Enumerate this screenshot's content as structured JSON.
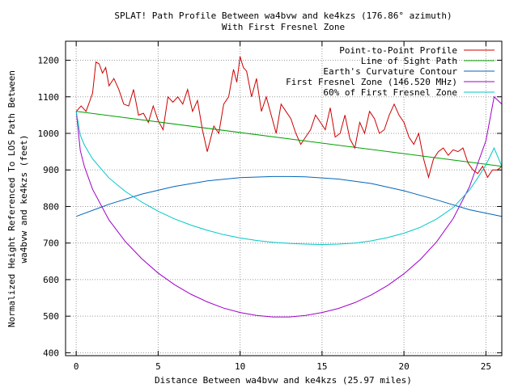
{
  "chart_data": {
    "type": "line",
    "title": "SPLAT! Path Profile Between wa4bvw and ke4kzs (176.86° azimuth)",
    "subtitle": "With First Fresnel Zone",
    "xlabel": "Distance Between wa4bvw and ke4kzs (25.97 miles)",
    "ylabel_lines": [
      "Normalized Height Referenced To LOS Path Between",
      "wa4bvw and ke4kzs (feet)"
    ],
    "xlim": [
      -0.65,
      25.97
    ],
    "ylim": [
      392,
      1252
    ],
    "x_ticks": [
      0,
      5,
      10,
      15,
      20,
      25
    ],
    "y_ticks": [
      400,
      500,
      600,
      700,
      800,
      900,
      1000,
      1100,
      1200
    ],
    "grid": true,
    "legend_position": "top-right",
    "series": [
      {
        "name": "Point-to-Point Profile",
        "color": "#cc0000",
        "x": [
          0,
          0.3,
          0.6,
          0.8,
          1.0,
          1.2,
          1.4,
          1.6,
          1.8,
          2.0,
          2.3,
          2.6,
          2.9,
          3.2,
          3.5,
          3.8,
          4.1,
          4.4,
          4.7,
          5.0,
          5.3,
          5.6,
          5.9,
          6.2,
          6.5,
          6.8,
          7.1,
          7.4,
          7.7,
          8.0,
          8.4,
          8.7,
          9.0,
          9.3,
          9.6,
          9.8,
          10.0,
          10.2,
          10.4,
          10.7,
          11.0,
          11.3,
          11.6,
          11.9,
          12.2,
          12.5,
          12.8,
          13.1,
          13.4,
          13.7,
          14.0,
          14.3,
          14.6,
          14.9,
          15.2,
          15.5,
          15.8,
          16.1,
          16.4,
          16.7,
          17.0,
          17.3,
          17.6,
          17.9,
          18.2,
          18.5,
          18.8,
          19.1,
          19.4,
          19.7,
          20.0,
          20.3,
          20.6,
          20.9,
          21.2,
          21.5,
          21.8,
          22.1,
          22.4,
          22.7,
          23.0,
          23.3,
          23.6,
          23.9,
          24.2,
          24.5,
          24.8,
          25.1,
          25.4,
          25.7,
          25.97
        ],
        "y": [
          1060,
          1075,
          1060,
          1085,
          1110,
          1195,
          1190,
          1165,
          1180,
          1130,
          1150,
          1120,
          1080,
          1075,
          1120,
          1050,
          1055,
          1030,
          1075,
          1035,
          1010,
          1100,
          1085,
          1100,
          1080,
          1120,
          1060,
          1090,
          1010,
          950,
          1020,
          1000,
          1080,
          1100,
          1175,
          1140,
          1210,
          1180,
          1170,
          1100,
          1150,
          1060,
          1100,
          1050,
          1000,
          1080,
          1060,
          1040,
          1000,
          970,
          990,
          1010,
          1050,
          1030,
          1010,
          1070,
          990,
          1000,
          1050,
          985,
          960,
          1030,
          1000,
          1060,
          1040,
          1000,
          1010,
          1050,
          1080,
          1050,
          1030,
          990,
          970,
          1000,
          930,
          880,
          930,
          950,
          960,
          940,
          955,
          950,
          960,
          920,
          900,
          890,
          910,
          880,
          900,
          900,
          910
        ]
      },
      {
        "name": "Line of Sight Path",
        "color": "#00a000",
        "x": [
          0,
          25.97
        ],
        "y": [
          1060,
          910
        ]
      },
      {
        "name": "Earth's Curvature Contour",
        "color": "#0066bb",
        "x": [
          0,
          2,
          4,
          6,
          8,
          10,
          12,
          13,
          14,
          16,
          18,
          20,
          22,
          24,
          25.97
        ],
        "y": [
          773,
          806,
          834,
          855,
          870,
          879,
          882,
          882,
          881,
          875,
          863,
          843,
          818,
          791,
          773
        ]
      },
      {
        "name": "First Fresnel Zone (146.520 MHz)",
        "color": "#a000c8",
        "x": [
          0,
          0.25,
          0.5,
          1,
          2,
          3,
          4,
          5,
          6,
          7,
          8,
          9,
          10,
          11,
          12,
          13,
          14,
          15,
          16,
          17,
          18,
          19,
          20,
          21,
          22,
          23,
          24,
          24.5,
          25,
          25.5,
          25.97
        ],
        "y": [
          1060,
          953,
          909,
          847,
          763,
          704,
          657,
          618,
          586,
          560,
          539,
          522,
          510,
          502,
          498,
          498,
          502,
          510,
          521,
          537,
          558,
          584,
          616,
          655,
          704,
          767,
          854,
          917,
          980,
          1100,
          1080
        ]
      },
      {
        "name": "60% of First Fresnel Zone",
        "color": "#00c8c8",
        "x": [
          0,
          0.25,
          0.5,
          1,
          2,
          3,
          4,
          5,
          6,
          7,
          8,
          9,
          10,
          11,
          12,
          13,
          14,
          15,
          16,
          17,
          18,
          19,
          20,
          21,
          22,
          23,
          24,
          24.5,
          25,
          25.5,
          25.97
        ],
        "y": [
          1060,
          995,
          968,
          930,
          878,
          841,
          812,
          787,
          766,
          749,
          735,
          723,
          714,
          707,
          702,
          699,
          697,
          696,
          697,
          700,
          706,
          715,
          727,
          743,
          766,
          797,
          845,
          878,
          914,
          960,
          910
        ]
      }
    ]
  }
}
